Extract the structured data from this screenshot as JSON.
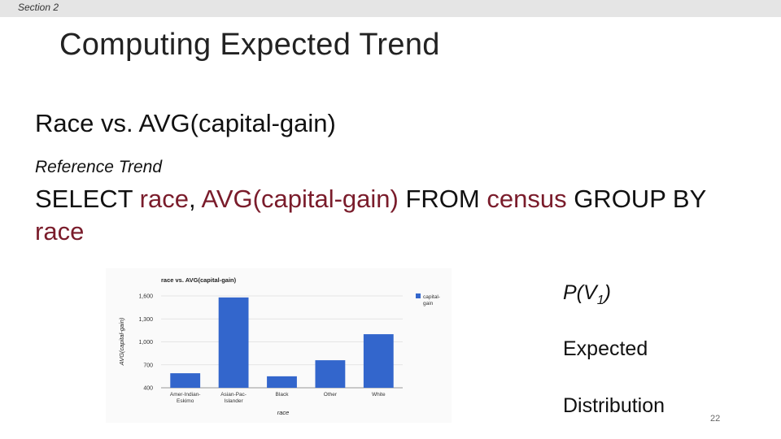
{
  "header": {
    "section": "Section 2"
  },
  "slide": {
    "title": "Computing Expected Trend",
    "subtitle": "Race vs. AVG(capital-gain)",
    "reference_label": "Reference Trend",
    "query": {
      "select": "SELECT ",
      "race1": "race",
      "comma": ", ",
      "agg": "AVG(capital-gain)",
      "from": " FROM ",
      "table": "census",
      "groupby": " GROUP BY ",
      "race2": "race"
    },
    "p_label_main": "P(V",
    "p_label_sub": "1",
    "p_label_close": ")",
    "expected": "Expected",
    "distribution": "Distribution",
    "page_number": "22"
  },
  "colors": {
    "bar": "#3366cc",
    "highlight": "#7a1c2b"
  },
  "chart_data": {
    "type": "bar",
    "title": "race vs. AVG(capital-gain)",
    "xlabel": "race",
    "ylabel": "AVG(capital-gain)",
    "categories": [
      "Amer-Indian-Eskimo",
      "Asian-Pac-Islander",
      "Black",
      "Other",
      "White"
    ],
    "category_labels": [
      [
        "Amer-Indian-",
        "Eskimo"
      ],
      [
        "Asian-Pac-",
        "Islander"
      ],
      [
        "Black"
      ],
      [
        "Other"
      ],
      [
        "White"
      ]
    ],
    "series": [
      {
        "name": "capital-gain",
        "values": [
          590,
          1580,
          550,
          760,
          1100
        ]
      }
    ],
    "legend_lines": [
      "capital-",
      "gain"
    ],
    "ylim": [
      400,
      1600
    ],
    "yticks": [
      400,
      700,
      1000,
      1300,
      1600
    ],
    "ytick_labels": [
      "400",
      "700",
      "1,000",
      "1,300",
      "1,600"
    ],
    "grid": true,
    "legend": "right"
  }
}
